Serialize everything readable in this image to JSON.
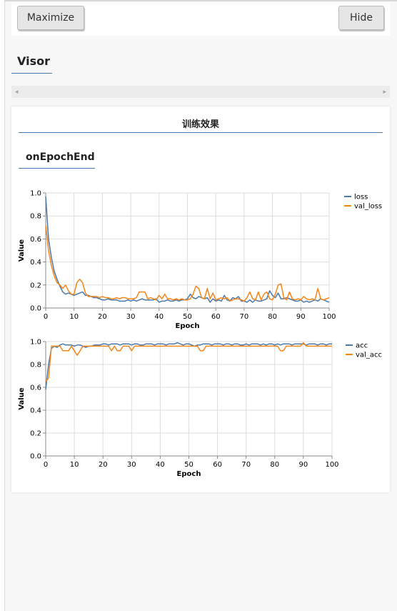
{
  "toolbar": {
    "maximize_label": "Maximize",
    "hide_label": "Hide"
  },
  "visor": {
    "title": "Visor"
  },
  "scrollbar": {
    "left_arrow": "◂",
    "right_arrow": "▸"
  },
  "panel": {
    "title": "训练效果",
    "subtitle": "onEpochEnd"
  },
  "colors": {
    "series1": "#4c78a8",
    "series2": "#f58518",
    "grid": "#dddddd",
    "accent": "#4a78b0"
  },
  "chart_data": [
    {
      "type": "line",
      "xlabel": "Epoch",
      "ylabel": "Value",
      "xlim": [
        0,
        100
      ],
      "ylim": [
        0,
        1
      ],
      "xticks": [
        0,
        10,
        20,
        30,
        40,
        50,
        60,
        70,
        80,
        90,
        100
      ],
      "yticks": [
        0,
        0.2,
        0.4,
        0.6,
        0.8,
        1.0
      ],
      "grid": true,
      "legend_position": "right",
      "series": [
        {
          "name": "loss",
          "values": [
            0.97,
            0.6,
            0.44,
            0.32,
            0.25,
            0.19,
            0.14,
            0.12,
            0.13,
            0.12,
            0.11,
            0.12,
            0.13,
            0.14,
            0.11,
            0.11,
            0.1,
            0.09,
            0.09,
            0.08,
            0.07,
            0.07,
            0.08,
            0.07,
            0.07,
            0.07,
            0.06,
            0.06,
            0.06,
            0.07,
            0.06,
            0.07,
            0.06,
            0.07,
            0.08,
            0.07,
            0.07,
            0.07,
            0.07,
            0.08,
            0.05,
            0.06,
            0.06,
            0.07,
            0.06,
            0.06,
            0.07,
            0.06,
            0.07,
            0.07,
            0.08,
            0.12,
            0.09,
            0.08,
            0.1,
            0.09,
            0.08,
            0.09,
            0.05,
            0.08,
            0.06,
            0.07,
            0.06,
            0.11,
            0.07,
            0.06,
            0.09,
            0.08,
            0.1,
            0.06,
            0.06,
            0.05,
            0.07,
            0.05,
            0.07,
            0.06,
            0.06,
            0.07,
            0.08,
            0.15,
            0.11,
            0.09,
            0.13,
            0.08,
            0.08,
            0.09,
            0.08,
            0.07,
            0.06,
            0.06,
            0.07,
            0.05,
            0.06,
            0.05,
            0.06,
            0.07,
            0.06,
            0.08,
            0.07,
            0.06,
            0.05
          ]
        },
        {
          "name": "val_loss",
          "values": [
            0.72,
            0.5,
            0.37,
            0.28,
            0.22,
            0.2,
            0.17,
            0.2,
            0.15,
            0.12,
            0.12,
            0.22,
            0.25,
            0.22,
            0.13,
            0.1,
            0.1,
            0.1,
            0.1,
            0.09,
            0.1,
            0.09,
            0.09,
            0.08,
            0.08,
            0.09,
            0.08,
            0.09,
            0.09,
            0.08,
            0.08,
            0.08,
            0.09,
            0.14,
            0.14,
            0.14,
            0.08,
            0.09,
            0.08,
            0.07,
            0.11,
            0.08,
            0.12,
            0.08,
            0.08,
            0.07,
            0.08,
            0.07,
            0.08,
            0.07,
            0.07,
            0.08,
            0.12,
            0.19,
            0.17,
            0.09,
            0.08,
            0.17,
            0.08,
            0.13,
            0.07,
            0.08,
            0.09,
            0.08,
            0.09,
            0.06,
            0.07,
            0.08,
            0.08,
            0.07,
            0.06,
            0.09,
            0.14,
            0.08,
            0.07,
            0.14,
            0.07,
            0.12,
            0.14,
            0.08,
            0.07,
            0.12,
            0.2,
            0.21,
            0.09,
            0.07,
            0.14,
            0.08,
            0.07,
            0.08,
            0.07,
            0.1,
            0.08,
            0.07,
            0.08,
            0.07,
            0.17,
            0.08,
            0.07,
            0.08,
            0.09
          ]
        }
      ]
    },
    {
      "type": "line",
      "xlabel": "Epoch",
      "ylabel": "Value",
      "xlim": [
        0,
        100
      ],
      "ylim": [
        0,
        1
      ],
      "xticks": [
        0,
        10,
        20,
        30,
        40,
        50,
        60,
        70,
        80,
        90,
        100
      ],
      "yticks": [
        0,
        0.2,
        0.4,
        0.6,
        0.8,
        1.0
      ],
      "grid": true,
      "legend_position": "right",
      "series": [
        {
          "name": "acc",
          "values": [
            0.58,
            0.8,
            0.94,
            0.96,
            0.95,
            0.97,
            0.98,
            0.97,
            0.97,
            0.97,
            0.96,
            0.97,
            0.97,
            0.96,
            0.95,
            0.96,
            0.96,
            0.97,
            0.97,
            0.97,
            0.98,
            0.98,
            0.97,
            0.98,
            0.98,
            0.98,
            0.97,
            0.98,
            0.98,
            0.98,
            0.97,
            0.98,
            0.98,
            0.97,
            0.97,
            0.98,
            0.98,
            0.98,
            0.97,
            0.98,
            0.98,
            0.98,
            0.97,
            0.98,
            0.98,
            0.98,
            0.99,
            0.98,
            0.97,
            0.98,
            0.98,
            0.97,
            0.96,
            0.97,
            0.97,
            0.98,
            0.98,
            0.98,
            0.97,
            0.98,
            0.98,
            0.98,
            0.97,
            0.98,
            0.98,
            0.97,
            0.98,
            0.98,
            0.97,
            0.97,
            0.98,
            0.97,
            0.98,
            0.98,
            0.98,
            0.97,
            0.98,
            0.97,
            0.98,
            0.98,
            0.97,
            0.98,
            0.97,
            0.98,
            0.98,
            0.98,
            0.97,
            0.98,
            0.98,
            0.98,
            0.98,
            0.97,
            0.98,
            0.98,
            0.98,
            0.97,
            0.98,
            0.98,
            0.97,
            0.98,
            0.98
          ]
        },
        {
          "name": "val_acc",
          "values": [
            0.65,
            0.68,
            0.96,
            0.96,
            0.96,
            0.96,
            0.92,
            0.92,
            0.92,
            0.96,
            0.92,
            0.88,
            0.92,
            0.96,
            0.96,
            0.96,
            0.96,
            0.96,
            0.96,
            0.96,
            0.96,
            0.96,
            0.96,
            0.92,
            0.96,
            0.92,
            0.92,
            0.96,
            0.96,
            0.96,
            0.92,
            0.96,
            0.96,
            0.96,
            0.96,
            0.96,
            0.96,
            0.96,
            0.96,
            0.96,
            0.96,
            0.96,
            0.96,
            0.96,
            0.96,
            0.96,
            0.96,
            0.96,
            0.96,
            0.96,
            0.96,
            0.96,
            0.96,
            0.96,
            0.92,
            0.92,
            0.96,
            0.96,
            0.96,
            0.96,
            0.96,
            0.96,
            0.96,
            0.96,
            0.96,
            0.96,
            0.96,
            0.96,
            0.96,
            0.96,
            0.96,
            0.96,
            0.96,
            0.96,
            0.96,
            0.96,
            0.96,
            0.96,
            0.96,
            0.96,
            0.96,
            0.96,
            0.92,
            0.92,
            0.96,
            0.96,
            0.96,
            0.96,
            0.96,
            0.96,
            0.99,
            0.96,
            0.96,
            0.96,
            0.96,
            0.96,
            0.96,
            0.96,
            0.96,
            0.96,
            0.96
          ]
        }
      ]
    }
  ]
}
